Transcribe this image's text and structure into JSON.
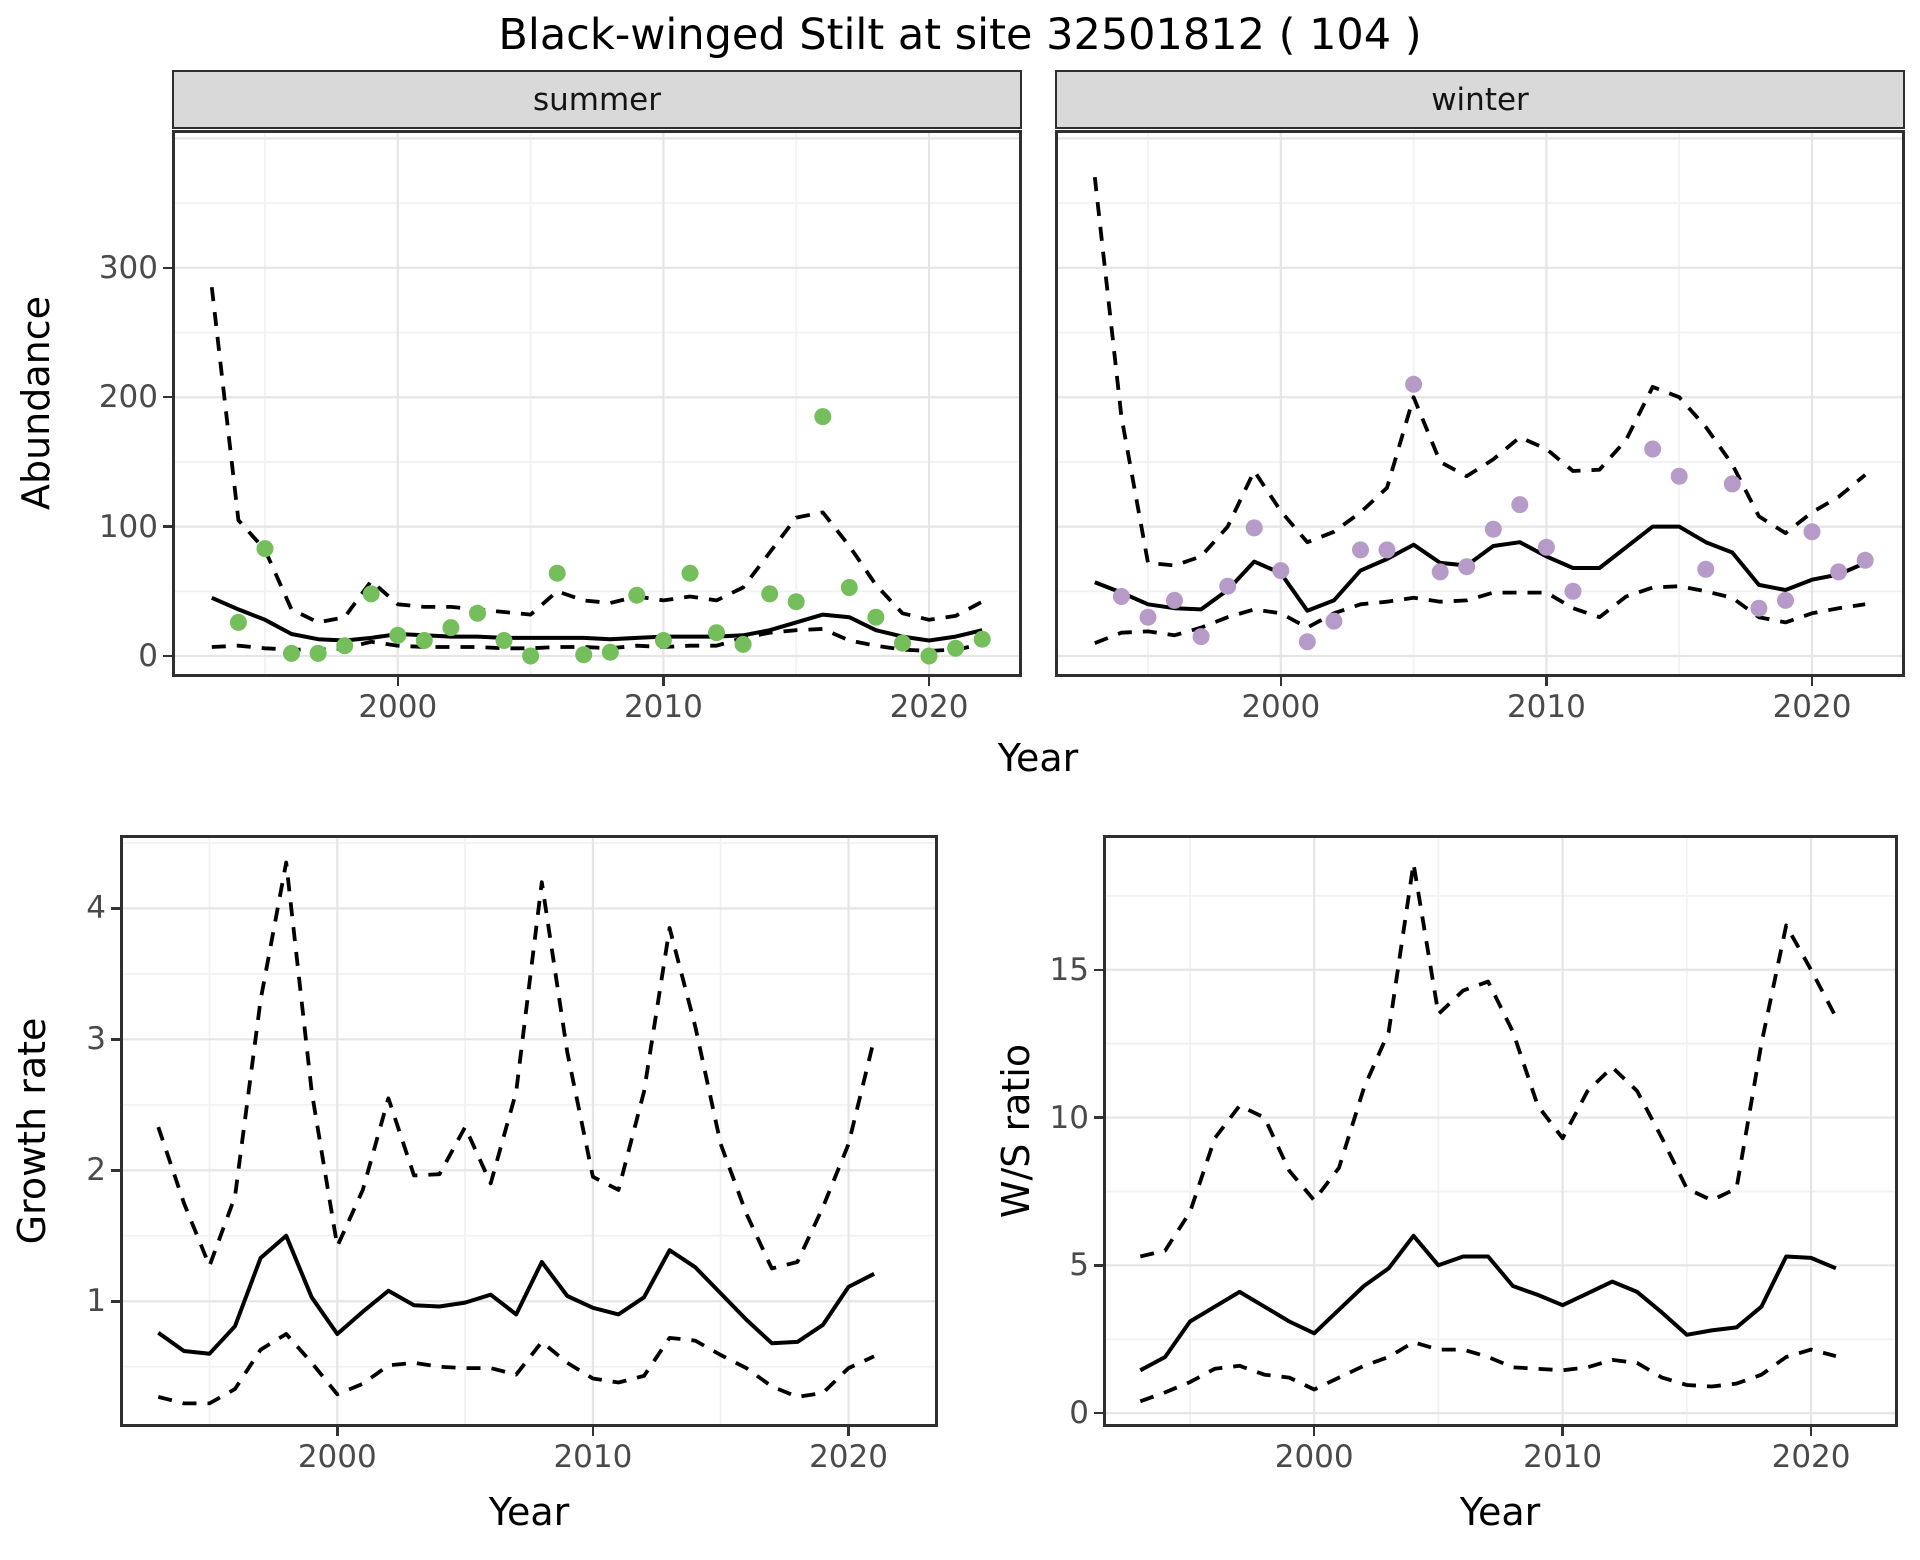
{
  "title": "Black-winged Stilt at site 32501812 ( 104 )",
  "labels": {
    "abundance": "Abundance",
    "year": "Year",
    "growth": "Growth rate",
    "ws": "W/S ratio"
  },
  "colors": {
    "summer_point": "#74BE5B",
    "winter_point": "#B69AC7",
    "line": "#000000",
    "strip_bg": "#d9d9d9",
    "panel_border": "#2f2f2f",
    "grid_major": "#e5e5e5",
    "grid_minor": "#f2f2f2",
    "tick_text": "#4a4a4a"
  },
  "chart_data": [
    {
      "id": "summer",
      "type": "line",
      "facet_label": "summer",
      "ylabel": "Abundance",
      "xlabel": "Year",
      "xlim": [
        1991.5,
        2023.5
      ],
      "ylim": [
        -16.2,
        406.5
      ],
      "xgrid_major": [
        2000,
        2010,
        2020
      ],
      "xgrid_minor": [
        1995,
        2005,
        2015
      ],
      "ygrid_major": [
        0,
        100,
        200,
        300,
        400
      ],
      "ygrid_minor": [
        50,
        150,
        250,
        350
      ],
      "xticks": [
        {
          "v": 2000,
          "label": "2000"
        },
        {
          "v": 2010,
          "label": "2010"
        },
        {
          "v": 2020,
          "label": "2020"
        }
      ],
      "yticks": [
        {
          "v": 0,
          "label": "0"
        },
        {
          "v": 100,
          "label": "100"
        },
        {
          "v": 200,
          "label": "200"
        },
        {
          "v": 300,
          "label": "300"
        }
      ],
      "years": [
        1993,
        1994,
        1995,
        1996,
        1997,
        1998,
        1999,
        2000,
        2001,
        2002,
        2003,
        2004,
        2005,
        2006,
        2007,
        2008,
        2009,
        2010,
        2011,
        2012,
        2013,
        2014,
        2015,
        2016,
        2017,
        2018,
        2019,
        2020,
        2021,
        2022
      ],
      "series": [
        {
          "name": "upper_ci",
          "style": "dashed",
          "values": [
            285,
            105,
            82,
            36,
            26,
            30,
            58,
            40,
            38,
            38,
            36,
            34,
            32,
            50,
            43,
            41,
            46,
            43,
            46,
            43,
            53,
            80,
            107,
            111,
            85,
            55,
            33,
            28,
            31,
            42
          ]
        },
        {
          "name": "lower_ci",
          "style": "dashed",
          "values": [
            7,
            8,
            6,
            5,
            5,
            6,
            11,
            8,
            7,
            7,
            7,
            6,
            6,
            7,
            7,
            6,
            8,
            7,
            8,
            8,
            14,
            18,
            20,
            21,
            12,
            8,
            5,
            4,
            5,
            9
          ]
        },
        {
          "name": "mean",
          "style": "solid",
          "values": [
            45,
            36,
            28,
            17,
            13,
            12,
            14,
            17,
            16,
            15,
            15,
            14,
            14,
            14,
            14,
            13,
            14,
            15,
            15,
            15,
            16,
            20,
            26,
            32,
            30,
            20,
            15,
            12,
            15,
            20
          ]
        }
      ],
      "points": {
        "color_key": "summer_point",
        "data": [
          [
            1994,
            26
          ],
          [
            1995,
            83
          ],
          [
            1996,
            2
          ],
          [
            1997,
            2
          ],
          [
            1998,
            8
          ],
          [
            1999,
            48
          ],
          [
            2000,
            16
          ],
          [
            2001,
            12
          ],
          [
            2002,
            22
          ],
          [
            2003,
            33
          ],
          [
            2004,
            12
          ],
          [
            2005,
            0
          ],
          [
            2006,
            64
          ],
          [
            2007,
            1
          ],
          [
            2008,
            3
          ],
          [
            2009,
            47
          ],
          [
            2010,
            12
          ],
          [
            2011,
            64
          ],
          [
            2012,
            18
          ],
          [
            2013,
            9
          ],
          [
            2014,
            48
          ],
          [
            2015,
            42
          ],
          [
            2016,
            185
          ],
          [
            2017,
            53
          ],
          [
            2018,
            30
          ],
          [
            2019,
            10
          ],
          [
            2020,
            0
          ],
          [
            2021,
            6
          ],
          [
            2022,
            13
          ]
        ]
      }
    },
    {
      "id": "winter",
      "type": "line",
      "facet_label": "winter",
      "ylabel": "Abundance",
      "xlabel": "Year",
      "xlim": [
        1991.5,
        2023.5
      ],
      "ylim": [
        -16.2,
        406.5
      ],
      "xgrid_major": [
        2000,
        2010,
        2020
      ],
      "xgrid_minor": [
        1995,
        2005,
        2015
      ],
      "ygrid_major": [
        0,
        100,
        200,
        300,
        400
      ],
      "ygrid_minor": [
        50,
        150,
        250,
        350
      ],
      "xticks": [
        {
          "v": 2000,
          "label": "2000"
        },
        {
          "v": 2010,
          "label": "2010"
        },
        {
          "v": 2020,
          "label": "2020"
        }
      ],
      "yticks": [],
      "years": [
        1993,
        1994,
        1995,
        1996,
        1997,
        1998,
        1999,
        2000,
        2001,
        2002,
        2003,
        2004,
        2005,
        2006,
        2007,
        2008,
        2009,
        2010,
        2011,
        2012,
        2013,
        2014,
        2015,
        2016,
        2017,
        2018,
        2019,
        2020,
        2021,
        2022
      ],
      "series": [
        {
          "name": "upper_ci",
          "style": "dashed",
          "values": [
            370,
            185,
            72,
            70,
            77,
            100,
            143,
            112,
            88,
            96,
            111,
            130,
            200,
            150,
            139,
            152,
            169,
            160,
            143,
            144,
            167,
            208,
            200,
            177,
            148,
            108,
            95,
            111,
            123,
            140
          ]
        },
        {
          "name": "lower_ci",
          "style": "dashed",
          "values": [
            10,
            18,
            19,
            16,
            22,
            30,
            36,
            33,
            22,
            33,
            40,
            42,
            45,
            42,
            43,
            49,
            49,
            49,
            37,
            30,
            46,
            53,
            54,
            50,
            45,
            30,
            26,
            33,
            37,
            40
          ]
        },
        {
          "name": "mean",
          "style": "solid",
          "values": [
            57,
            49,
            40,
            37,
            36,
            51,
            73,
            64,
            35,
            43,
            66,
            75,
            86,
            72,
            70,
            85,
            88,
            77,
            68,
            68,
            84,
            100,
            100,
            88,
            80,
            55,
            51,
            59,
            63,
            72
          ]
        }
      ],
      "points": {
        "color_key": "winter_point",
        "data": [
          [
            1994,
            46
          ],
          [
            1995,
            30
          ],
          [
            1996,
            43
          ],
          [
            1997,
            15
          ],
          [
            1998,
            54
          ],
          [
            1999,
            99
          ],
          [
            2000,
            66
          ],
          [
            2001,
            11
          ],
          [
            2002,
            27
          ],
          [
            2003,
            82
          ],
          [
            2004,
            82
          ],
          [
            2005,
            210
          ],
          [
            2006,
            65
          ],
          [
            2007,
            69
          ],
          [
            2008,
            98
          ],
          [
            2009,
            117
          ],
          [
            2010,
            84
          ],
          [
            2011,
            50
          ],
          [
            2014,
            160
          ],
          [
            2015,
            139
          ],
          [
            2016,
            67
          ],
          [
            2017,
            133
          ],
          [
            2018,
            37
          ],
          [
            2019,
            43
          ],
          [
            2020,
            96
          ],
          [
            2021,
            65
          ],
          [
            2022,
            74
          ]
        ]
      }
    },
    {
      "id": "growth",
      "type": "line",
      "facet_label": null,
      "ylabel": "Growth rate",
      "xlabel": "Year",
      "xlim": [
        1991.5,
        2023.5
      ],
      "ylim": [
        0.04,
        4.56
      ],
      "xgrid_major": [
        2000,
        2010,
        2020
      ],
      "xgrid_minor": [
        1995,
        2005,
        2015
      ],
      "ygrid_major": [
        1,
        2,
        3,
        4
      ],
      "ygrid_minor": [
        0.5,
        1.5,
        2.5,
        3.5,
        4.5
      ],
      "xticks": [
        {
          "v": 2000,
          "label": "2000"
        },
        {
          "v": 2010,
          "label": "2010"
        },
        {
          "v": 2020,
          "label": "2020"
        }
      ],
      "yticks": [
        {
          "v": 1,
          "label": "1"
        },
        {
          "v": 2,
          "label": "2"
        },
        {
          "v": 3,
          "label": "3"
        },
        {
          "v": 4,
          "label": "4"
        }
      ],
      "years": [
        1993,
        1994,
        1995,
        1996,
        1997,
        1998,
        1999,
        2000,
        2001,
        2002,
        2003,
        2004,
        2005,
        2006,
        2007,
        2008,
        2009,
        2010,
        2011,
        2012,
        2013,
        2014,
        2015,
        2016,
        2017,
        2018,
        2019,
        2020,
        2021
      ],
      "series": [
        {
          "name": "upper_ci",
          "style": "dashed",
          "values": [
            2.33,
            1.75,
            1.27,
            1.8,
            3.3,
            4.35,
            2.6,
            1.42,
            1.85,
            2.55,
            1.96,
            1.97,
            2.33,
            1.9,
            2.6,
            4.2,
            2.9,
            1.95,
            1.85,
            2.6,
            3.85,
            3.1,
            2.2,
            1.67,
            1.25,
            1.3,
            1.72,
            2.2,
            3.0
          ]
        },
        {
          "name": "lower_ci",
          "style": "dashed",
          "values": [
            0.27,
            0.22,
            0.22,
            0.33,
            0.63,
            0.75,
            0.53,
            0.29,
            0.37,
            0.51,
            0.53,
            0.5,
            0.49,
            0.49,
            0.44,
            0.69,
            0.53,
            0.41,
            0.38,
            0.43,
            0.72,
            0.7,
            0.59,
            0.49,
            0.35,
            0.27,
            0.3,
            0.49,
            0.58
          ]
        },
        {
          "name": "mean",
          "style": "solid",
          "values": [
            0.76,
            0.62,
            0.6,
            0.81,
            1.33,
            1.5,
            1.03,
            0.75,
            0.92,
            1.08,
            0.97,
            0.96,
            0.99,
            1.05,
            0.9,
            1.3,
            1.04,
            0.95,
            0.9,
            1.03,
            1.39,
            1.26,
            1.06,
            0.86,
            0.68,
            0.69,
            0.82,
            1.11,
            1.21
          ]
        }
      ],
      "points": null
    },
    {
      "id": "ws",
      "type": "line",
      "facet_label": null,
      "ylabel": "W/S ratio",
      "xlabel": "Year",
      "xlim": [
        1991.5,
        2023.5
      ],
      "ylim": [
        -0.47,
        19.56
      ],
      "xgrid_major": [
        2000,
        2010,
        2020
      ],
      "xgrid_minor": [
        1995,
        2005,
        2015
      ],
      "ygrid_major": [
        0,
        5,
        10,
        15
      ],
      "ygrid_minor": [
        2.5,
        7.5,
        12.5,
        17.5
      ],
      "xticks": [
        {
          "v": 2000,
          "label": "2000"
        },
        {
          "v": 2010,
          "label": "2010"
        },
        {
          "v": 2020,
          "label": "2020"
        }
      ],
      "yticks": [
        {
          "v": 0,
          "label": "0"
        },
        {
          "v": 5,
          "label": "5"
        },
        {
          "v": 10,
          "label": "10"
        },
        {
          "v": 15,
          "label": "15"
        }
      ],
      "years": [
        1993,
        1994,
        1995,
        1996,
        1997,
        1998,
        1999,
        2000,
        2001,
        2002,
        2003,
        2004,
        2005,
        2006,
        2007,
        2008,
        2009,
        2010,
        2011,
        2012,
        2013,
        2014,
        2015,
        2016,
        2017,
        2018,
        2019,
        2020,
        2021
      ],
      "series": [
        {
          "name": "upper_ci",
          "style": "dashed",
          "values": [
            5.3,
            5.5,
            6.8,
            9.3,
            10.4,
            10.0,
            8.2,
            7.2,
            8.3,
            11.0,
            12.9,
            18.6,
            13.5,
            14.3,
            14.6,
            12.9,
            10.4,
            9.3,
            10.9,
            11.7,
            10.9,
            9.3,
            7.6,
            7.2,
            7.6,
            12.5,
            16.5,
            15.0,
            13.4
          ]
        },
        {
          "name": "lower_ci",
          "style": "dashed",
          "values": [
            0.4,
            0.7,
            1.05,
            1.5,
            1.6,
            1.3,
            1.2,
            0.8,
            1.2,
            1.6,
            1.9,
            2.4,
            2.15,
            2.15,
            1.9,
            1.55,
            1.5,
            1.45,
            1.55,
            1.8,
            1.7,
            1.2,
            0.95,
            0.9,
            1.0,
            1.3,
            1.9,
            2.15,
            1.93
          ]
        },
        {
          "name": "mean",
          "style": "solid",
          "values": [
            1.45,
            1.9,
            3.1,
            3.6,
            4.1,
            3.6,
            3.1,
            2.7,
            3.5,
            4.3,
            4.9,
            6.0,
            5.0,
            5.3,
            5.3,
            4.3,
            4.0,
            3.65,
            4.05,
            4.45,
            4.1,
            3.4,
            2.65,
            2.8,
            2.9,
            3.6,
            5.3,
            5.25,
            4.9
          ]
        }
      ],
      "points": null
    }
  ]
}
